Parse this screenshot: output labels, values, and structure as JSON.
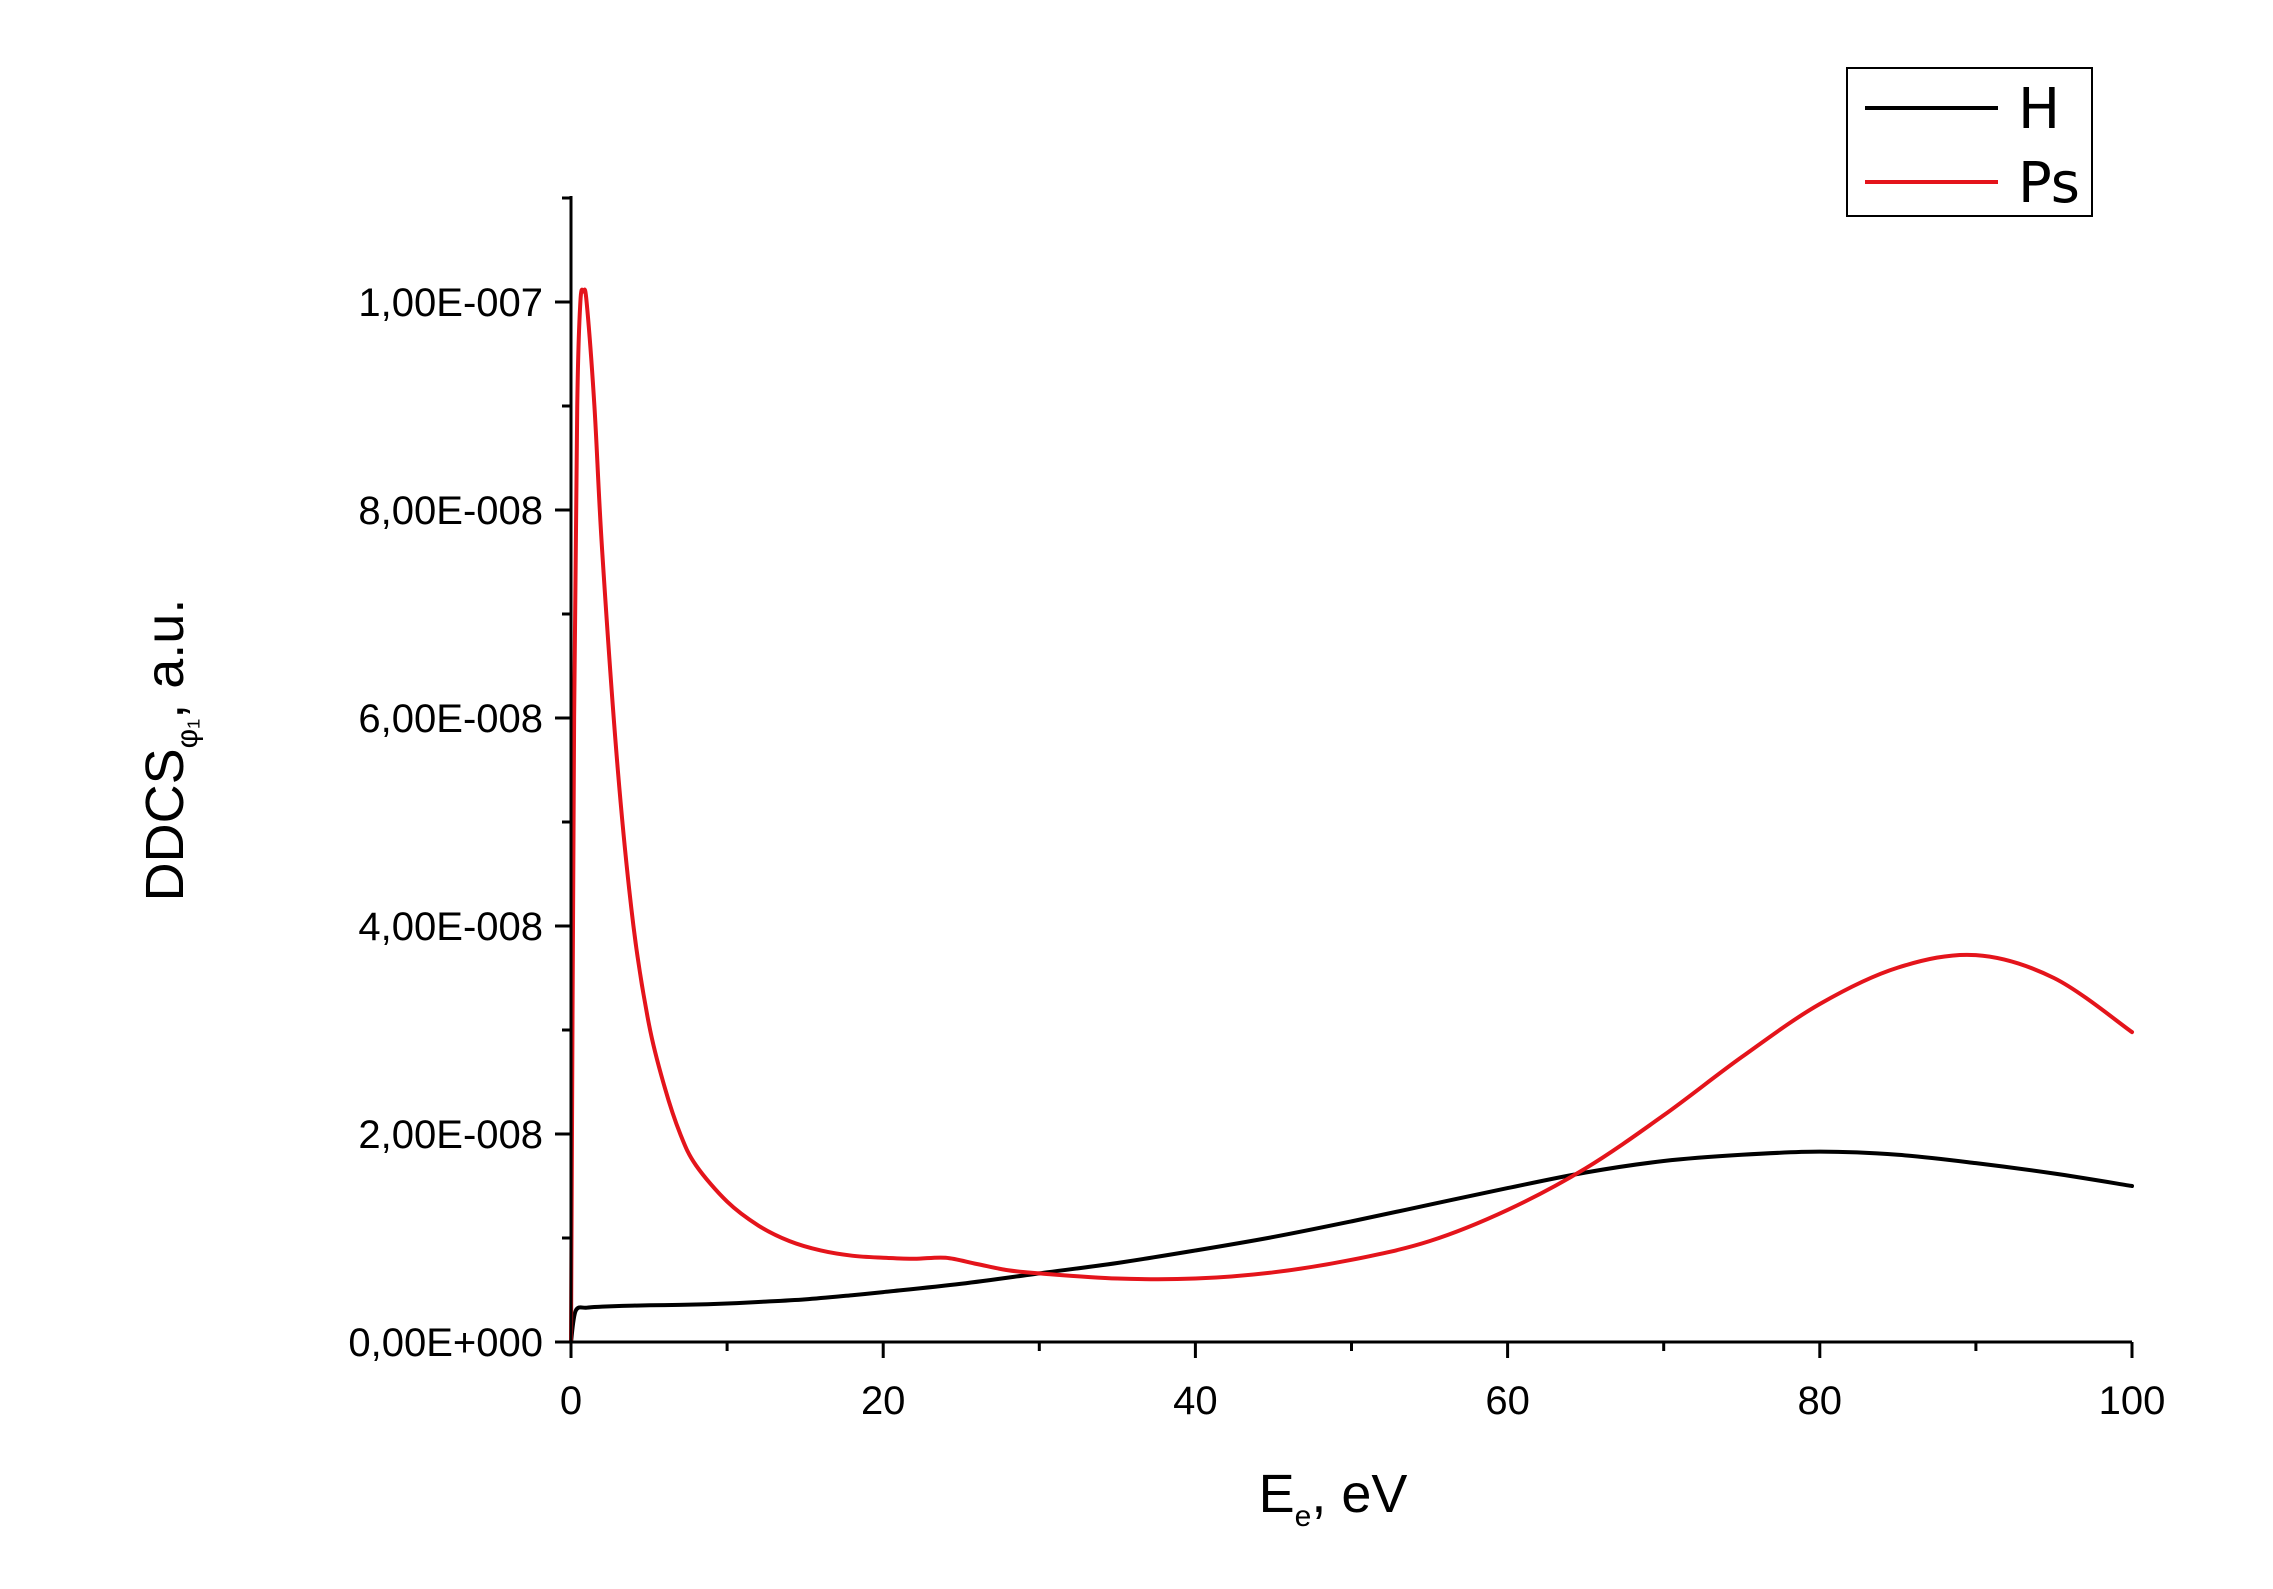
{
  "chart_data": {
    "type": "line",
    "xlabel": {
      "main": "E",
      "sub": "e",
      "suffix": ", eV"
    },
    "ylabel": {
      "main": "DDCS",
      "sub": "φ₁",
      "suffix": ", a.u."
    },
    "xlim": [
      0,
      100
    ],
    "ylim": [
      0,
      1.1e-07
    ],
    "x_ticks": [
      0,
      20,
      40,
      60,
      80,
      100
    ],
    "x_tick_labels": [
      "0",
      "20",
      "40",
      "60",
      "80",
      "100"
    ],
    "y_ticks": [
      0,
      2e-08,
      4e-08,
      6e-08,
      8e-08,
      1e-07
    ],
    "y_tick_labels": [
      "0,00E+000",
      "2,00E-008",
      "4,00E-008",
      "6,00E-008",
      "8,00E-008",
      "1,00E-007"
    ],
    "grid": false,
    "legend_position": "top-right",
    "series": [
      {
        "name": "H",
        "color": "#000000",
        "x": [
          0,
          0.3,
          1,
          2,
          4,
          6,
          8,
          10,
          12,
          15,
          18,
          20,
          25,
          30,
          35,
          40,
          45,
          50,
          55,
          60,
          65,
          70,
          75,
          80,
          85,
          90,
          95,
          100
        ],
        "y": [
          0,
          3e-09,
          3.3e-09,
          3.4e-09,
          3.5e-09,
          3.55e-09,
          3.6e-09,
          3.7e-09,
          3.85e-09,
          4.1e-09,
          4.5e-09,
          4.8e-09,
          5.6e-09,
          6.6e-09,
          7.6e-09,
          8.8e-09,
          1.01e-08,
          1.16e-08,
          1.32e-08,
          1.48e-08,
          1.63e-08,
          1.74e-08,
          1.8e-08,
          1.83e-08,
          1.8e-08,
          1.72e-08,
          1.62e-08,
          1.5e-08
        ]
      },
      {
        "name": "Ps",
        "color": "#e4141b",
        "x": [
          0,
          0.2,
          0.4,
          0.6,
          0.8,
          1,
          1.5,
          2,
          3,
          4,
          5,
          6,
          7,
          8,
          10,
          12,
          14,
          16,
          18,
          20,
          22,
          24,
          26,
          28,
          30,
          35,
          40,
          45,
          50,
          55,
          60,
          65,
          70,
          75,
          80,
          85,
          90,
          95,
          100
        ],
        "y": [
          0,
          6e-08,
          9e-08,
          1e-07,
          1.01e-07,
          1e-07,
          9e-08,
          7.6e-08,
          5.5e-08,
          4e-08,
          3.05e-08,
          2.45e-08,
          2e-08,
          1.7e-08,
          1.35e-08,
          1.12e-08,
          9.7e-09,
          8.8e-09,
          8.3e-09,
          8.1e-09,
          8e-09,
          8.1e-09,
          7.5e-09,
          6.9e-09,
          6.6e-09,
          6.1e-09,
          6.1e-09,
          6.7e-09,
          7.9e-09,
          9.7e-09,
          1.27e-08,
          1.67e-08,
          2.18e-08,
          2.74e-08,
          3.25e-08,
          3.6e-08,
          3.72e-08,
          3.5e-08,
          2.98e-08
        ]
      }
    ]
  }
}
